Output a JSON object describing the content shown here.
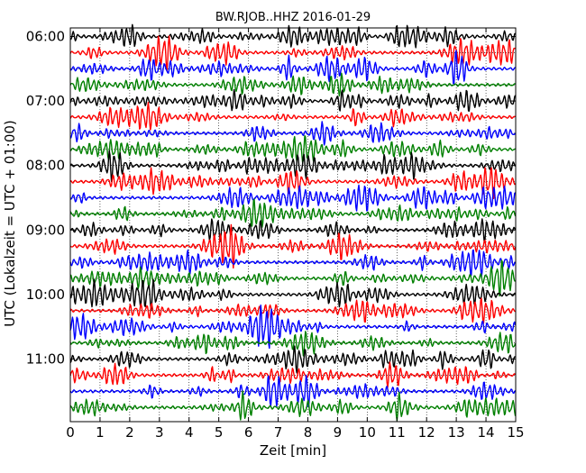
{
  "chart_data": {
    "type": "line",
    "title": "BW.RJOB..HHZ 2016-01-29",
    "xlabel": "Zeit  [min]",
    "ylabel": "UTC (Lokalzeit = UTC + 01:00)",
    "xlim": [
      0,
      15
    ],
    "x_ticks": [
      "0",
      "1",
      "2",
      "3",
      "4",
      "5",
      "6",
      "7",
      "8",
      "9",
      "10",
      "11",
      "12",
      "13",
      "14",
      "15"
    ],
    "y_ticks": [
      "06:00",
      "07:00",
      "08:00",
      "09:00",
      "10:00",
      "11:00"
    ],
    "grid": true,
    "trace_interval_min": 15,
    "trace_count": 24,
    "trace_colors": [
      "#000000",
      "#ff0000",
      "#0000ff",
      "#008000"
    ]
  }
}
